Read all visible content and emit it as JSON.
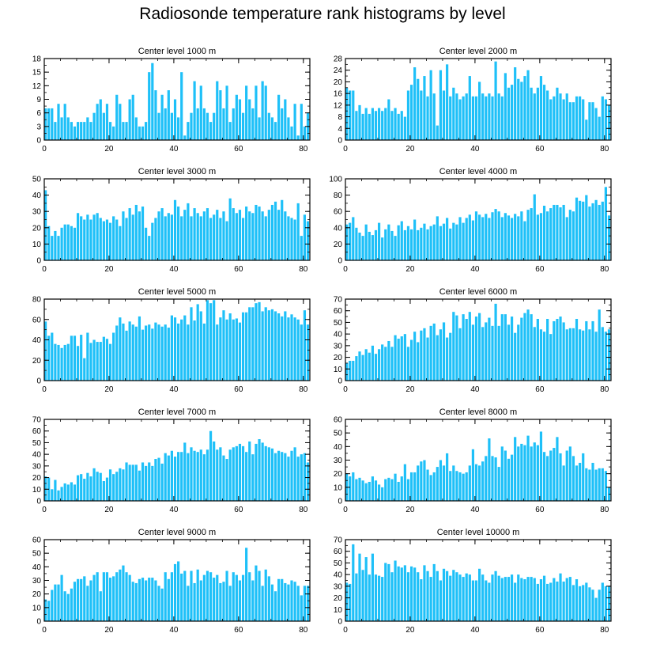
{
  "title": "Radiosonde temperature rank histograms by level",
  "colors": {
    "bar": "#1ec0f8",
    "axis": "#000000",
    "background": "#ffffff"
  },
  "chart_data": [
    {
      "type": "bar",
      "title": "Center level 1000 m",
      "xlim": [
        0,
        82
      ],
      "ylim": [
        0,
        18
      ],
      "xticks": [
        0,
        20,
        40,
        60,
        80
      ],
      "yticks": [
        0,
        3,
        6,
        9,
        12,
        15,
        18
      ],
      "values": [
        7,
        7,
        7,
        4,
        8,
        5,
        8,
        5,
        4,
        3,
        4,
        4,
        4,
        5,
        4,
        6,
        8,
        9,
        6,
        8,
        4,
        3,
        10,
        8,
        4,
        4,
        9,
        10,
        5,
        3,
        3,
        4,
        15,
        17,
        11,
        6,
        10,
        7,
        11,
        6,
        9,
        5,
        15,
        1,
        4,
        6,
        13,
        7,
        12,
        7,
        6,
        4,
        6,
        13,
        11,
        7,
        12,
        4,
        7,
        10,
        9,
        6,
        12,
        9,
        7,
        12,
        5,
        13,
        12,
        6,
        5,
        4,
        10,
        7,
        9,
        5,
        3,
        8,
        1,
        8,
        3,
        6
      ]
    },
    {
      "type": "bar",
      "title": "Center level 2000 m",
      "xlim": [
        0,
        82
      ],
      "ylim": [
        0,
        28
      ],
      "xticks": [
        0,
        20,
        40,
        60,
        80
      ],
      "yticks": [
        0,
        4,
        8,
        12,
        16,
        20,
        24,
        28
      ],
      "values": [
        18,
        17,
        17,
        10,
        12,
        9,
        11,
        9,
        11,
        10,
        11,
        10,
        11,
        14,
        10,
        11,
        9,
        10,
        8,
        17,
        19,
        25,
        21,
        17,
        22,
        15,
        24,
        16,
        5,
        24,
        17,
        26,
        15,
        18,
        16,
        14,
        15,
        16,
        22,
        15,
        15,
        20,
        16,
        15,
        16,
        15,
        27,
        16,
        15,
        23,
        18,
        19,
        25,
        21,
        20,
        22,
        24,
        18,
        16,
        18,
        22,
        19,
        17,
        14,
        15,
        18,
        16,
        14,
        16,
        13,
        13,
        15,
        15,
        14,
        7,
        13,
        13,
        11,
        8,
        15,
        14,
        12
      ]
    },
    {
      "type": "bar",
      "title": "Center level 3000 m",
      "xlim": [
        0,
        82
      ],
      "ylim": [
        0,
        50
      ],
      "xticks": [
        0,
        20,
        40,
        60,
        80
      ],
      "yticks": [
        0,
        10,
        20,
        30,
        40,
        50
      ],
      "values": [
        43,
        21,
        15,
        18,
        15,
        20,
        22,
        22,
        21,
        20,
        29,
        27,
        25,
        28,
        25,
        28,
        29,
        26,
        24,
        25,
        23,
        27,
        25,
        21,
        30,
        26,
        32,
        28,
        34,
        30,
        33,
        20,
        15,
        23,
        26,
        30,
        32,
        27,
        29,
        28,
        37,
        33,
        27,
        31,
        35,
        27,
        32,
        29,
        27,
        30,
        32,
        26,
        28,
        31,
        26,
        30,
        24,
        38,
        32,
        29,
        31,
        26,
        33,
        30,
        29,
        34,
        33,
        30,
        27,
        31,
        34,
        36,
        31,
        37,
        30,
        27,
        26,
        25,
        35,
        15,
        28,
        24
      ]
    },
    {
      "type": "bar",
      "title": "Center level 4000 m",
      "xlim": [
        0,
        82
      ],
      "ylim": [
        0,
        100
      ],
      "xticks": [
        0,
        20,
        40,
        60,
        80
      ],
      "yticks": [
        0,
        20,
        40,
        60,
        80,
        100
      ],
      "values": [
        44,
        46,
        53,
        40,
        34,
        30,
        44,
        35,
        31,
        37,
        46,
        28,
        38,
        44,
        36,
        30,
        43,
        48,
        37,
        42,
        38,
        50,
        37,
        40,
        45,
        38,
        42,
        44,
        54,
        42,
        45,
        52,
        39,
        46,
        44,
        53,
        46,
        52,
        56,
        49,
        60,
        56,
        53,
        57,
        52,
        59,
        63,
        60,
        53,
        58,
        55,
        52,
        57,
        54,
        60,
        48,
        62,
        64,
        81,
        56,
        58,
        67,
        60,
        64,
        68,
        68,
        65,
        68,
        53,
        62,
        60,
        77,
        73,
        72,
        80,
        66,
        70,
        74,
        68,
        72,
        90,
        55
      ]
    },
    {
      "type": "bar",
      "title": "Center level 5000 m",
      "xlim": [
        0,
        82
      ],
      "ylim": [
        0,
        80
      ],
      "xticks": [
        0,
        20,
        40,
        60,
        80
      ],
      "yticks": [
        0,
        20,
        40,
        60,
        80
      ],
      "values": [
        58,
        44,
        47,
        36,
        35,
        32,
        35,
        36,
        44,
        44,
        34,
        45,
        22,
        47,
        37,
        40,
        38,
        38,
        43,
        41,
        36,
        47,
        54,
        62,
        56,
        49,
        58,
        55,
        53,
        63,
        50,
        54,
        55,
        51,
        57,
        55,
        53,
        55,
        52,
        64,
        62,
        56,
        60,
        64,
        55,
        72,
        59,
        75,
        68,
        56,
        79,
        76,
        79,
        55,
        62,
        69,
        60,
        66,
        60,
        61,
        57,
        67,
        67,
        72,
        72,
        76,
        77,
        68,
        72,
        69,
        70,
        68,
        66,
        63,
        68,
        62,
        65,
        62,
        60,
        55,
        69,
        55
      ]
    },
    {
      "type": "bar",
      "title": "Center level 6000 m",
      "xlim": [
        0,
        82
      ],
      "ylim": [
        0,
        70
      ],
      "xticks": [
        0,
        20,
        40,
        60,
        80
      ],
      "yticks": [
        0,
        10,
        20,
        30,
        40,
        50,
        60,
        70
      ],
      "values": [
        15,
        17,
        17,
        21,
        25,
        22,
        27,
        24,
        30,
        23,
        27,
        31,
        29,
        34,
        29,
        39,
        36,
        38,
        40,
        29,
        35,
        42,
        33,
        43,
        45,
        37,
        47,
        49,
        39,
        44,
        50,
        37,
        41,
        59,
        56,
        45,
        57,
        53,
        59,
        48,
        55,
        58,
        46,
        50,
        54,
        47,
        66,
        47,
        57,
        57,
        48,
        55,
        41,
        48,
        54,
        58,
        61,
        57,
        46,
        53,
        44,
        42,
        53,
        40,
        51,
        53,
        55,
        50,
        44,
        45,
        45,
        53,
        44,
        43,
        51,
        44,
        51,
        42,
        61,
        46,
        42,
        44
      ]
    },
    {
      "type": "bar",
      "title": "Center level 7000 m",
      "xlim": [
        0,
        82
      ],
      "ylim": [
        0,
        70
      ],
      "xticks": [
        0,
        20,
        40,
        60,
        80
      ],
      "yticks": [
        0,
        10,
        20,
        30,
        40,
        50,
        60,
        70
      ],
      "values": [
        21,
        20,
        10,
        18,
        9,
        12,
        15,
        14,
        16,
        14,
        22,
        23,
        19,
        24,
        21,
        28,
        25,
        24,
        17,
        20,
        27,
        23,
        25,
        28,
        27,
        33,
        31,
        31,
        31,
        26,
        33,
        30,
        33,
        30,
        36,
        37,
        32,
        41,
        39,
        43,
        38,
        42,
        42,
        50,
        41,
        46,
        43,
        42,
        44,
        40,
        44,
        60,
        51,
        44,
        46,
        39,
        36,
        44,
        46,
        47,
        49,
        47,
        42,
        51,
        40,
        49,
        53,
        50,
        47,
        46,
        45,
        41,
        43,
        42,
        41,
        38,
        43,
        46,
        38,
        40,
        41,
        33
      ]
    },
    {
      "type": "bar",
      "title": "Center level 8000 m",
      "xlim": [
        0,
        82
      ],
      "ylim": [
        0,
        60
      ],
      "xticks": [
        0,
        20,
        40,
        60,
        80
      ],
      "yticks": [
        0,
        10,
        20,
        30,
        40,
        50,
        60
      ],
      "values": [
        20,
        18,
        21,
        16,
        17,
        15,
        13,
        14,
        18,
        15,
        12,
        10,
        16,
        17,
        16,
        20,
        14,
        18,
        27,
        16,
        21,
        21,
        26,
        29,
        30,
        23,
        19,
        21,
        25,
        30,
        26,
        35,
        22,
        26,
        22,
        21,
        20,
        21,
        26,
        38,
        27,
        26,
        29,
        33,
        46,
        33,
        32,
        25,
        40,
        37,
        31,
        34,
        47,
        40,
        42,
        41,
        48,
        40,
        43,
        41,
        51,
        36,
        33,
        37,
        39,
        47,
        35,
        26,
        37,
        40,
        33,
        26,
        28,
        35,
        24,
        23,
        28,
        23,
        24,
        24,
        22,
        10
      ]
    },
    {
      "type": "bar",
      "title": "Center level 9000 m",
      "xlim": [
        0,
        82
      ],
      "ylim": [
        0,
        60
      ],
      "xticks": [
        0,
        20,
        40,
        60,
        80
      ],
      "yticks": [
        0,
        10,
        20,
        30,
        40,
        50,
        60
      ],
      "values": [
        16,
        15,
        23,
        27,
        27,
        34,
        22,
        20,
        24,
        29,
        31,
        31,
        33,
        26,
        30,
        34,
        36,
        22,
        36,
        36,
        32,
        33,
        36,
        38,
        41,
        36,
        34,
        29,
        28,
        31,
        32,
        30,
        32,
        32,
        30,
        26,
        24,
        36,
        31,
        36,
        42,
        44,
        35,
        37,
        26,
        37,
        28,
        38,
        30,
        34,
        37,
        36,
        32,
        34,
        28,
        29,
        37,
        26,
        36,
        34,
        30,
        34,
        54,
        36,
        30,
        41,
        37,
        26,
        38,
        33,
        27,
        22,
        31,
        31,
        28,
        27,
        30,
        29,
        26,
        19,
        26,
        26
      ]
    },
    {
      "type": "bar",
      "title": "Center level 10000 m",
      "xlim": [
        0,
        82
      ],
      "ylim": [
        0,
        70
      ],
      "xticks": [
        0,
        20,
        40,
        60,
        80
      ],
      "yticks": [
        0,
        10,
        20,
        30,
        40,
        50,
        60,
        70
      ],
      "values": [
        33,
        32,
        66,
        41,
        58,
        44,
        55,
        40,
        58,
        40,
        39,
        38,
        50,
        49,
        42,
        52,
        47,
        46,
        48,
        42,
        47,
        46,
        42,
        36,
        48,
        43,
        38,
        49,
        43,
        35,
        45,
        43,
        39,
        44,
        42,
        40,
        38,
        41,
        40,
        35,
        35,
        45,
        40,
        35,
        33,
        40,
        43,
        39,
        37,
        38,
        38,
        40,
        33,
        40,
        37,
        36,
        38,
        38,
        37,
        32,
        36,
        39,
        32,
        33,
        37,
        34,
        41,
        34,
        37,
        38,
        31,
        36,
        30,
        31,
        33,
        29,
        27,
        20,
        27,
        33,
        30,
        30
      ]
    }
  ]
}
